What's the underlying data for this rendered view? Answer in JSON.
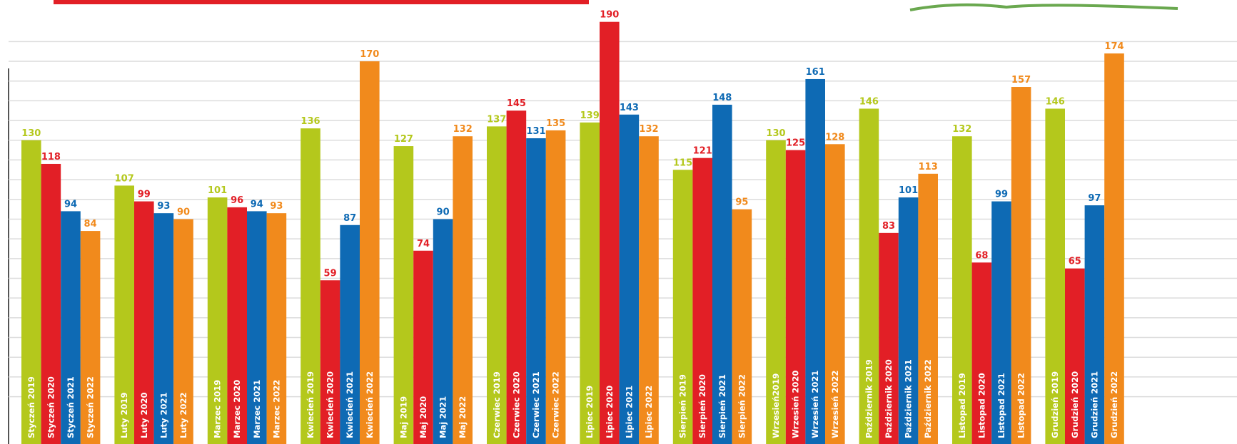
{
  "chart_data": {
    "type": "bar",
    "ylim": [
      -24,
      200
    ],
    "yticks": [
      0,
      10,
      20,
      30,
      40,
      50,
      60,
      70,
      80,
      90,
      100,
      110,
      120,
      130,
      140,
      150,
      160,
      170,
      180
    ],
    "grid": true,
    "series": [
      {
        "color": "#b4c81c",
        "values": [
          130,
          107,
          101,
          136,
          127,
          137,
          139,
          115,
          130,
          146,
          132,
          146
        ],
        "labels": [
          "Styczeń 2019",
          "Luty 2019",
          "Marzec 2019",
          "Kwiecień 2019",
          "Maj 2019",
          "Czerwiec 2019",
          "Lipiec 2019",
          "Sierpień 2019",
          "Wrzesień2019",
          "Październik 2019",
          "Listopad 2019",
          "Grudzień 2019"
        ]
      },
      {
        "color": "#e21f26",
        "values": [
          118,
          99,
          96,
          59,
          74,
          145,
          190,
          121,
          125,
          83,
          68,
          65
        ],
        "labels": [
          "Styczeń 2020",
          "Luty 2020",
          "Marzec 2020",
          "Kwiecień 2020",
          "Maj 2020",
          "Czerwiec 2020",
          "Lipiec 2020",
          "Sierpień 2020",
          "Wrzesień 2020",
          "Październik 2020",
          "Listopad 2020",
          "Grudzień 2020"
        ]
      },
      {
        "color": "#0e6ab4",
        "values": [
          94,
          93,
          94,
          87,
          90,
          131,
          143,
          148,
          161,
          101,
          99,
          97
        ],
        "labels": [
          "Styczeń 2021",
          "Luty 2021",
          "Marzec 2021",
          "Kwiecień 2021",
          "Maj 2021",
          "Czerwiec 2021",
          "Lipiec 2021",
          "Sierpień 2021",
          "Wrzesień 2021",
          "Październik 2021",
          "Listopad 2021",
          "Grudzień 2021"
        ]
      },
      {
        "color": "#f18a1c",
        "values": [
          84,
          90,
          93,
          170,
          132,
          135,
          132,
          95,
          128,
          113,
          157,
          174
        ],
        "labels": [
          "Styczeń 2022",
          "Luty 2022",
          "Marzec 2022",
          "Kwiecień 2022",
          "Maj 2022",
          "Czerwiec 2022",
          "Lipiec 2022",
          "Sierpień 2022",
          "Wrzesień 2022",
          "Październik 2022",
          "Listopad 2022",
          "Grudzień 2022"
        ]
      }
    ]
  }
}
